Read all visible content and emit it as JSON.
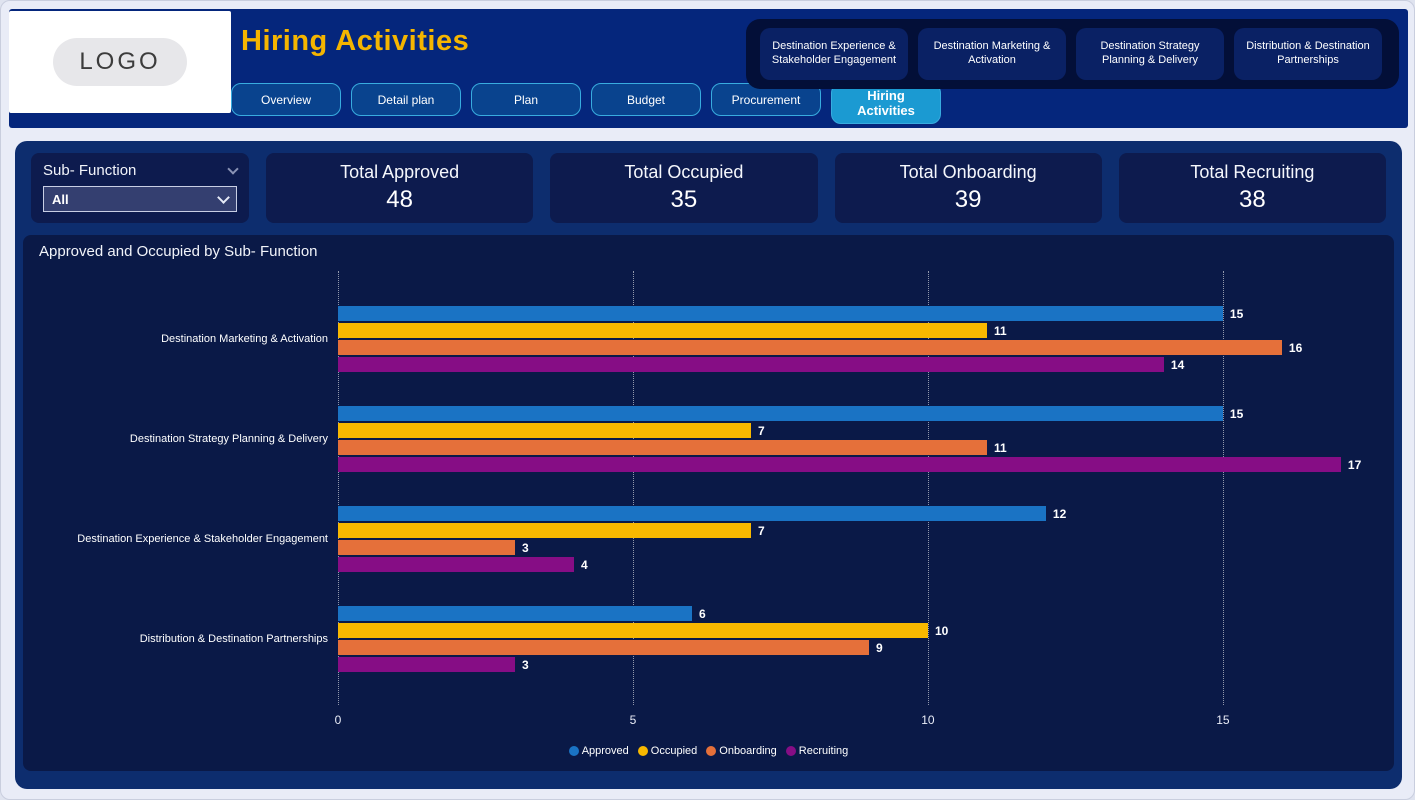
{
  "header": {
    "logo_text": "LOGO",
    "title": "Hiring Activities",
    "tabs": [
      {
        "label": "Overview",
        "active": false
      },
      {
        "label": "Detail plan",
        "active": false
      },
      {
        "label": "Plan",
        "active": false
      },
      {
        "label": "Budget",
        "active": false
      },
      {
        "label": "Procurement",
        "active": false
      },
      {
        "label": "Hiring Activities",
        "active": true
      }
    ],
    "nav_buttons": [
      {
        "label": "Destination Experience & Stakeholder Engagement"
      },
      {
        "label": "Destination Marketing & Activation"
      },
      {
        "label": "Destination Strategy Planning & Delivery"
      },
      {
        "label": "Distribution & Destination Partnerships"
      }
    ]
  },
  "filter": {
    "label": "Sub- Function",
    "value": "All"
  },
  "kpis": [
    {
      "label": "Total Approved",
      "value": "48"
    },
    {
      "label": "Total Occupied",
      "value": "35"
    },
    {
      "label": "Total Onboarding",
      "value": "39"
    },
    {
      "label": "Total Recruiting",
      "value": "38"
    }
  ],
  "chart_data": {
    "type": "bar",
    "orientation": "horizontal",
    "title": "Approved and Occupied by Sub- Function",
    "categories": [
      "Destination Marketing & Activation",
      "Destination Strategy Planning & Delivery",
      "Destination Experience & Stakeholder Engagement",
      "Distribution & Destination Partnerships"
    ],
    "series": [
      {
        "name": "Approved",
        "color": "#1a73c4",
        "values": [
          15,
          15,
          12,
          6
        ]
      },
      {
        "name": "Occupied",
        "color": "#f8b800",
        "values": [
          11,
          7,
          7,
          10
        ]
      },
      {
        "name": "Onboarding",
        "color": "#e5703a",
        "values": [
          16,
          11,
          3,
          9
        ]
      },
      {
        "name": "Recruiting",
        "color": "#860d85",
        "values": [
          14,
          17,
          4,
          3
        ]
      }
    ],
    "x_ticks": [
      0,
      5,
      10,
      15
    ],
    "xlim": [
      0,
      17.9
    ],
    "grid": "dotted-vertical",
    "legend_position": "bottom"
  },
  "colors": {
    "header_bg": "#05267c",
    "panel_bg": "#0d2d6e",
    "card_bg": "#0d1b4e",
    "chart_card_bg": "#0a1947",
    "accent_gold": "#f5b500",
    "tab_bg": "#09438e",
    "tab_border": "#38acdf",
    "active_tab_bg": "#1b9ad2",
    "nav_strip_bg": "#030f38",
    "nav_button_bg": "#0a2164"
  }
}
